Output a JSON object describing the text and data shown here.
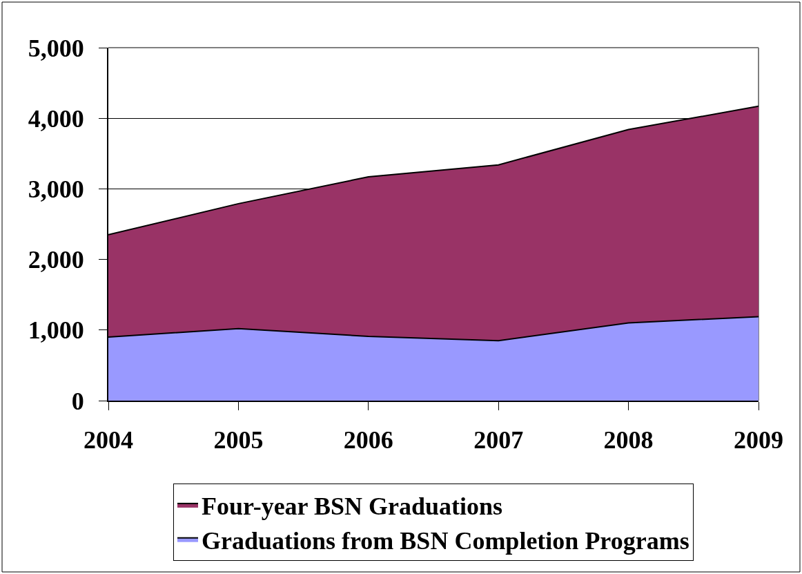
{
  "chart_data": {
    "type": "area",
    "stacked": true,
    "categories": [
      "2004",
      "2005",
      "2006",
      "2007",
      "2008",
      "2009"
    ],
    "series": [
      {
        "name": "Graduations from BSN Completion Programs",
        "color": "#9999ff",
        "values": [
          900,
          1020,
          910,
          850,
          1100,
          1190
        ]
      },
      {
        "name": "Four-year BSN Graduations",
        "color": "#993366",
        "values": [
          1450,
          1770,
          2260,
          2490,
          2740,
          2980
        ]
      }
    ],
    "ylim": [
      0,
      5000
    ],
    "yticks": [
      0,
      {
        "value": 1000,
        "label": "1,000"
      },
      {
        "value": 2000,
        "label": "2,000"
      },
      {
        "value": 3000,
        "label": "3,000"
      },
      {
        "value": 4000,
        "label": "4,000"
      },
      {
        "value": 5000,
        "label": "5,000"
      }
    ],
    "grid": "y",
    "legend": "bottom"
  }
}
